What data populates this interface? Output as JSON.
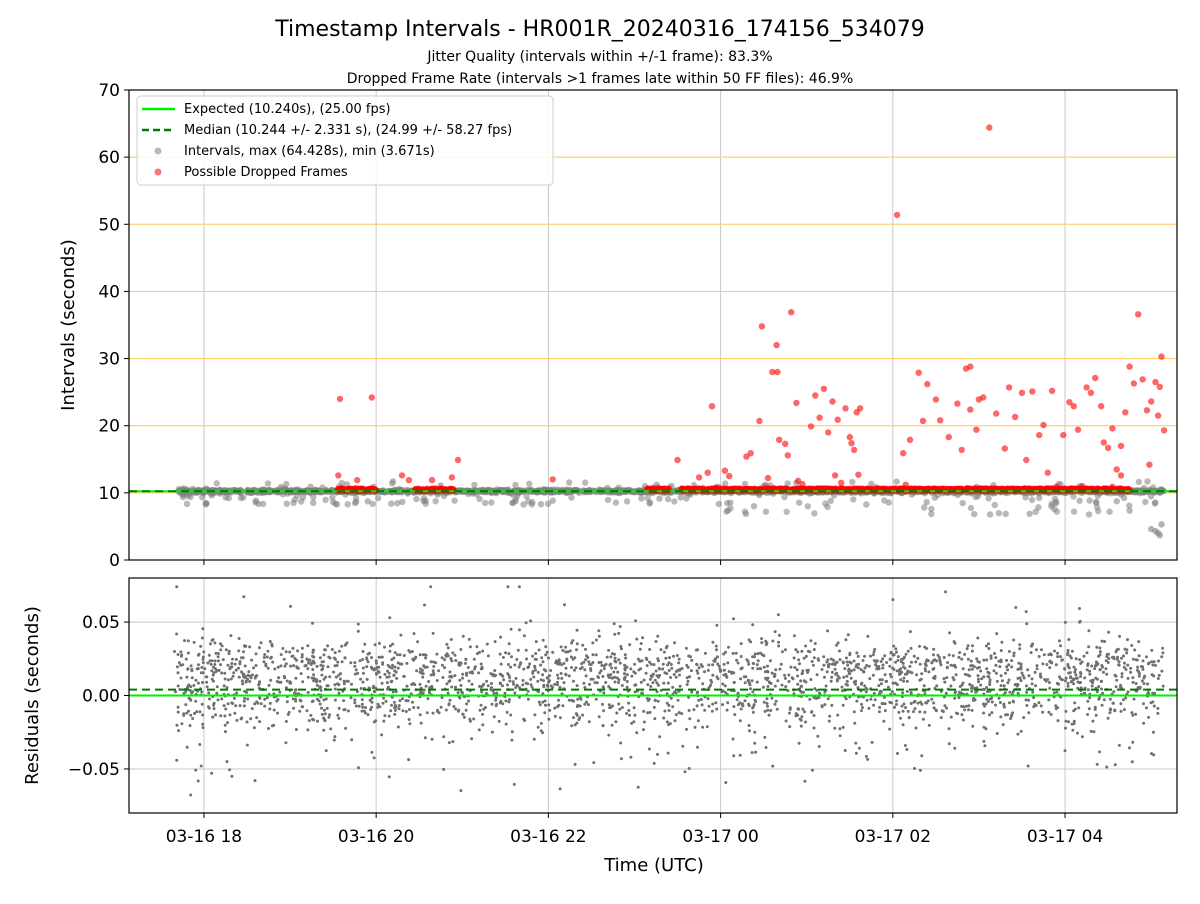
{
  "chart_data": {
    "type": "scatter",
    "title": "Timestamp Intervals - HR001R_20240316_174156_534079",
    "subtitle_1": "Jitter Quality (intervals within +/-1 frame): 83.3%",
    "subtitle_2": "Dropped Frame Rate (intervals >1 frames late within 50 FF files): 46.9%",
    "xlabel": "Time (UTC)",
    "x_ticks": [
      "03-16 18",
      "03-16 20",
      "03-16 22",
      "03-17 00",
      "03-17 02",
      "03-17 04"
    ],
    "x_tick_hours": [
      18,
      20,
      22,
      24,
      26,
      28
    ],
    "x_range_hours": [
      17.13,
      29.3
    ],
    "data_start_hours": 17.7,
    "data_end_hours": 28.75,
    "grid": true,
    "top_panel": {
      "ylabel": "Intervals (seconds)",
      "ylim": [
        0,
        70
      ],
      "y_ticks": [
        "0",
        "10",
        "20",
        "30",
        "40",
        "50",
        "60",
        "70"
      ],
      "y_tick_values": [
        0,
        10,
        20,
        30,
        40,
        50,
        60,
        70
      ],
      "hlines_orange": [
        10,
        20,
        30,
        40,
        50,
        60
      ],
      "expected_value": 10.24,
      "median_value": 10.244,
      "legend_placement": "top-left",
      "legend": [
        "Expected (10.240s), (25.00 fps)",
        "Median (10.244 +/- 2.331 s), (24.99 +/- 58.27 fps)",
        "Intervals, max (64.428s), min (3.671s)",
        "Possible Dropped Frames"
      ],
      "dropped_dense_segments_hours": [
        [
          19.55,
          20.0
        ],
        [
          20.45,
          20.9
        ],
        [
          23.15,
          23.4
        ],
        [
          23.55,
          23.95
        ],
        [
          23.9,
          28.75
        ]
      ],
      "dropped_points": [
        [
          19.58,
          24.0
        ],
        [
          19.95,
          24.2
        ],
        [
          19.56,
          12.6
        ],
        [
          19.78,
          11.9
        ],
        [
          20.3,
          12.6
        ],
        [
          20.38,
          11.9
        ],
        [
          20.95,
          14.9
        ],
        [
          20.88,
          12.3
        ],
        [
          20.65,
          11.9
        ],
        [
          22.05,
          12.0
        ],
        [
          23.5,
          14.9
        ],
        [
          23.55,
          10.5
        ],
        [
          23.75,
          12.3
        ],
        [
          23.85,
          13.0
        ],
        [
          23.9,
          22.9
        ],
        [
          23.95,
          10.8
        ],
        [
          24.05,
          13.3
        ],
        [
          24.1,
          12.5
        ],
        [
          24.3,
          15.4
        ],
        [
          24.35,
          15.9
        ],
        [
          24.45,
          20.7
        ],
        [
          24.48,
          34.8
        ],
        [
          24.55,
          12.2
        ],
        [
          24.6,
          28.0
        ],
        [
          24.65,
          32.0
        ],
        [
          24.66,
          28.0
        ],
        [
          24.68,
          17.9
        ],
        [
          24.75,
          17.3
        ],
        [
          24.78,
          15.6
        ],
        [
          24.82,
          36.9
        ],
        [
          24.88,
          23.4
        ],
        [
          24.9,
          11.8
        ],
        [
          24.95,
          11.3
        ],
        [
          25.05,
          19.9
        ],
        [
          25.1,
          24.5
        ],
        [
          25.15,
          21.2
        ],
        [
          25.2,
          25.5
        ],
        [
          25.25,
          19.0
        ],
        [
          25.3,
          23.6
        ],
        [
          25.33,
          12.6
        ],
        [
          25.36,
          20.9
        ],
        [
          25.4,
          11.5
        ],
        [
          25.45,
          22.6
        ],
        [
          25.5,
          18.3
        ],
        [
          25.52,
          17.4
        ],
        [
          25.55,
          16.4
        ],
        [
          25.58,
          22.0
        ],
        [
          25.6,
          12.7
        ],
        [
          25.62,
          22.6
        ],
        [
          26.05,
          51.4
        ],
        [
          26.12,
          15.9
        ],
        [
          26.15,
          11.2
        ],
        [
          26.2,
          17.9
        ],
        [
          26.3,
          27.9
        ],
        [
          26.35,
          20.7
        ],
        [
          26.4,
          26.2
        ],
        [
          26.5,
          23.9
        ],
        [
          26.55,
          20.8
        ],
        [
          26.65,
          18.3
        ],
        [
          26.75,
          23.3
        ],
        [
          26.8,
          16.4
        ],
        [
          26.85,
          28.5
        ],
        [
          26.9,
          28.8
        ],
        [
          26.9,
          22.4
        ],
        [
          26.97,
          19.4
        ],
        [
          27.0,
          23.9
        ],
        [
          27.05,
          24.2
        ],
        [
          27.12,
          64.4
        ],
        [
          27.2,
          21.8
        ],
        [
          27.3,
          16.6
        ],
        [
          27.35,
          25.7
        ],
        [
          27.42,
          21.3
        ],
        [
          27.5,
          24.9
        ],
        [
          27.55,
          14.9
        ],
        [
          27.62,
          25.1
        ],
        [
          27.7,
          18.6
        ],
        [
          27.75,
          20.1
        ],
        [
          27.8,
          13.0
        ],
        [
          27.85,
          25.2
        ],
        [
          27.9,
          10.9
        ],
        [
          27.98,
          18.6
        ],
        [
          28.05,
          23.5
        ],
        [
          28.1,
          22.9
        ],
        [
          28.15,
          19.4
        ],
        [
          28.2,
          11.0
        ],
        [
          28.25,
          25.7
        ],
        [
          28.3,
          24.9
        ],
        [
          28.35,
          27.1
        ],
        [
          28.42,
          22.9
        ],
        [
          28.45,
          17.5
        ],
        [
          28.5,
          16.7
        ],
        [
          28.55,
          19.6
        ],
        [
          28.55,
          10.9
        ],
        [
          28.6,
          13.5
        ],
        [
          28.65,
          17.0
        ],
        [
          28.7,
          22.0
        ],
        [
          28.75,
          28.8
        ],
        [
          28.8,
          26.3
        ],
        [
          28.85,
          36.6
        ],
        [
          28.9,
          26.9
        ],
        [
          28.95,
          22.3
        ],
        [
          29.0,
          23.6
        ],
        [
          29.05,
          26.5
        ],
        [
          29.08,
          21.5
        ],
        [
          29.1,
          25.8
        ],
        [
          29.12,
          30.3
        ],
        [
          29.15,
          19.3
        ],
        [
          28.98,
          14.2
        ],
        [
          28.65,
          12.6
        ]
      ]
    },
    "bottom_panel": {
      "ylabel": "Residuals (seconds)",
      "ylim": [
        -0.08,
        0.08
      ],
      "y_ticks": [
        "0.05",
        "0.00",
        "−0.05"
      ],
      "y_tick_values": [
        0.05,
        0.0,
        -0.05
      ],
      "expected_value": 0.0,
      "median_value": 0.004,
      "points_description_note": ""
    },
    "colors": {
      "expected": "#00ee00",
      "median": "#007a00",
      "intervals": "#808080",
      "dropped": "#ff0000",
      "orange_lines": "#ffd070",
      "grid": "#c8c8c8",
      "residual_points": "#707070"
    }
  }
}
